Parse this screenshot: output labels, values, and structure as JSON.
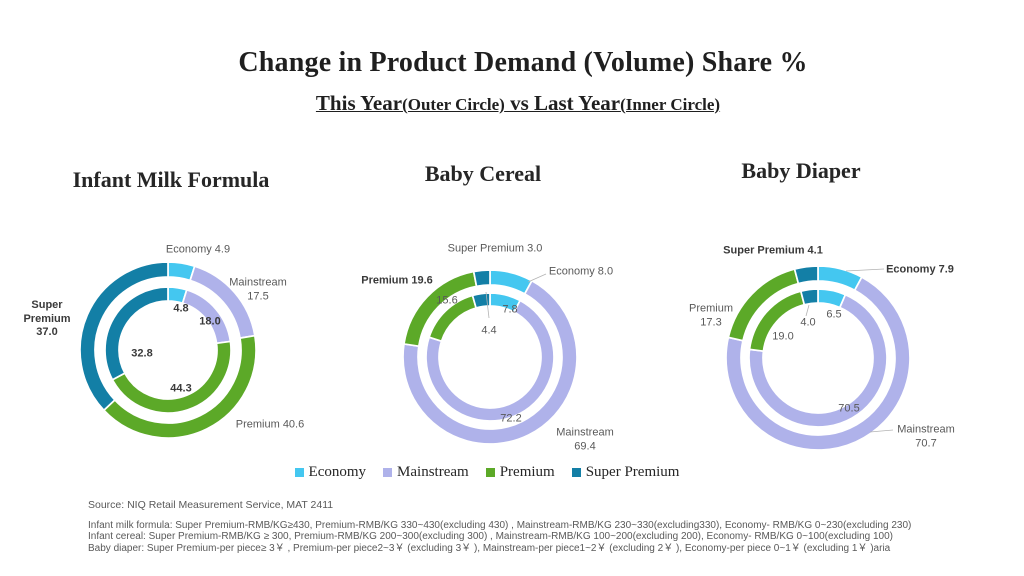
{
  "title": "Change in Product Demand (Volume) Share %",
  "subtitle": {
    "this_year": "This Year",
    "outer_circle": "(Outer Circle)",
    "vs_last_year": " vs Last Year",
    "inner_circle": "(Inner Circle)"
  },
  "palette": [
    "#44C7F0",
    "#AFB2EA",
    "#5CA928",
    "#137FA6"
  ],
  "legend": [
    {
      "label": "Economy",
      "color": "#44C7F0"
    },
    {
      "label": "Mainstream",
      "color": "#AFB2EA"
    },
    {
      "label": "Premium",
      "color": "#5CA928"
    },
    {
      "label": "Super Premium",
      "color": "#137FA6"
    }
  ],
  "chart_data": [
    {
      "type": "donut",
      "title": "Infant Milk Formula",
      "categories": [
        "Economy",
        "Mainstream",
        "Premium",
        "Super Premium"
      ],
      "series": [
        {
          "name": "This Year (Outer Circle)",
          "values": [
            4.9,
            17.5,
            40.6,
            37.0
          ]
        },
        {
          "name": "Last Year (Inner Circle)",
          "values": [
            4.8,
            18.0,
            44.3,
            32.8
          ]
        }
      ],
      "labels": {
        "economy_outer": "Economy 4.9",
        "mainstream_outer": "Mainstream\n17.5",
        "premium_outer": "Premium 40.6",
        "super_premium_outer": "Super\nPremium\n37.0",
        "economy_inner": "4.8",
        "mainstream_inner": "18.0",
        "premium_inner": "44.3",
        "super_premium_inner": "32.8"
      }
    },
    {
      "type": "donut",
      "title": "Baby Cereal",
      "categories": [
        "Economy",
        "Mainstream",
        "Premium",
        "Super Premium"
      ],
      "series": [
        {
          "name": "This Year (Outer Circle)",
          "values": [
            8.0,
            69.4,
            19.6,
            3.0
          ]
        },
        {
          "name": "Last Year (Inner Circle)",
          "values": [
            7.8,
            72.2,
            15.6,
            4.4
          ]
        }
      ],
      "labels": {
        "economy_outer": "Economy 8.0",
        "mainstream_outer": "Mainstream\n69.4",
        "premium_outer": "Premium 19.6",
        "super_premium_outer": "Super Premium 3.0",
        "economy_inner": "7.8",
        "mainstream_inner": "72.2",
        "premium_inner": "15.6",
        "super_premium_inner": "4.4"
      }
    },
    {
      "type": "donut",
      "title": "Baby Diaper",
      "categories": [
        "Economy",
        "Mainstream",
        "Premium",
        "Super Premium"
      ],
      "series": [
        {
          "name": "This Year (Outer Circle)",
          "values": [
            7.9,
            70.7,
            17.3,
            4.1
          ]
        },
        {
          "name": "Last Year (Inner Circle)",
          "values": [
            6.5,
            70.5,
            19.0,
            4.0
          ]
        }
      ],
      "labels": {
        "economy_outer": "Economy 7.9",
        "mainstream_outer": "Mainstream\n70.7",
        "premium_outer": "Premium\n17.3",
        "super_premium_outer": "Super Premium 4.1",
        "economy_inner": "6.5",
        "mainstream_inner": "70.5",
        "premium_inner": "19.0",
        "super_premium_inner": "4.0"
      }
    }
  ],
  "source": "Source: NIQ Retail Measurement Service, MAT 2411",
  "footnotes": [
    "Infant milk formula: Super Premium-RMB/KG≥430,  Premium-RMB/KG 330~430(excluding 430) ,  Mainstream-RMB/KG 230~330(excluding330),  Economy- RMB/KG 0~230(excluding 230)",
    "Infant cereal: Super Premium-RMB/KG ≥ 300,  Premium-RMB/KG 200~300(excluding 300) ,  Mainstream-RMB/KG 100~200(excluding 200),  Economy- RMB/KG 0~100(excluding 100)",
    "Baby diaper: Super Premium-per piece≥ 3￥ ,  Premium-per piece2~3￥ (excluding 3￥ ),  Mainstream-per piece1~2￥ (excluding 2￥ ),  Economy-per piece 0~1￥ (excluding 1￥ )aria"
  ]
}
